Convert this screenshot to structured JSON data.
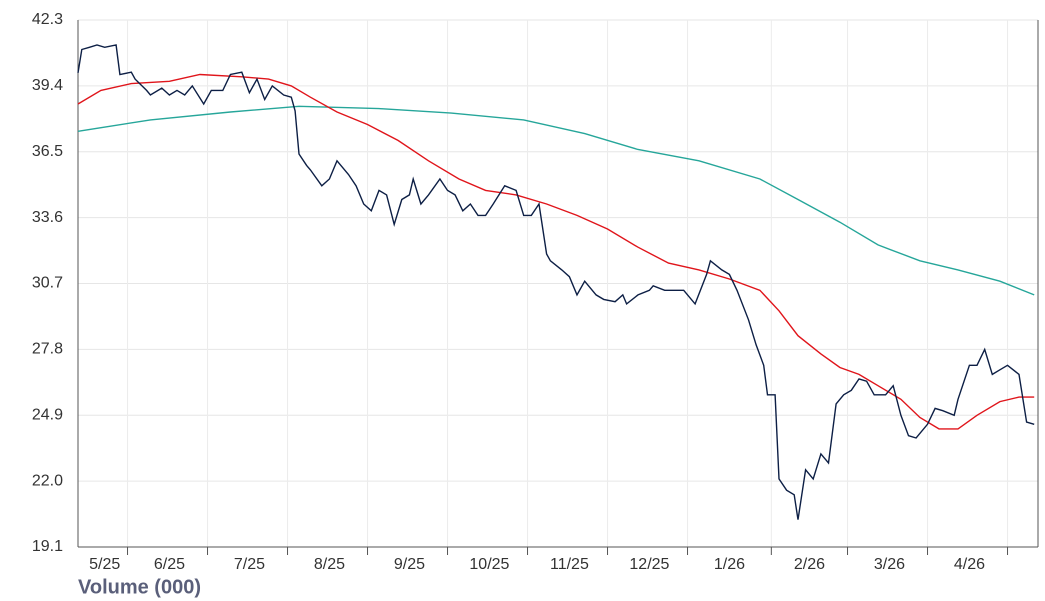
{
  "chart_data": {
    "type": "line",
    "annotation": "Volume (000)",
    "xlim": [
      0,
      252
    ],
    "xticks": [
      {
        "value": 7,
        "label": "5/25"
      },
      {
        "value": 24,
        "label": "6/25"
      },
      {
        "value": 45,
        "label": "7/25"
      },
      {
        "value": 66,
        "label": "8/25"
      },
      {
        "value": 87,
        "label": "9/25"
      },
      {
        "value": 108,
        "label": "10/25"
      },
      {
        "value": 129,
        "label": "11/25"
      },
      {
        "value": 150,
        "label": "12/25"
      },
      {
        "value": 171,
        "label": "1/26"
      },
      {
        "value": 192,
        "label": "2/26"
      },
      {
        "value": 213,
        "label": "3/26"
      },
      {
        "value": 234,
        "label": "4/26"
      }
    ],
    "xgrid": [
      13,
      34,
      55,
      76,
      97,
      118,
      139,
      160,
      182,
      202,
      223,
      244
    ],
    "ylim": [
      19.1,
      42.3
    ],
    "yticks": [
      19.1,
      {
        "value": 22,
        "label": "22.0"
      },
      24.9,
      27.8,
      30.7,
      33.6,
      36.5,
      39.4,
      42.3
    ],
    "grid": true,
    "series": [
      {
        "color": "#0d1f45",
        "x": [
          0,
          1,
          3,
          5,
          7,
          10,
          11,
          14,
          15,
          18,
          19,
          22,
          24,
          26,
          28,
          30,
          33,
          35,
          38,
          40,
          43,
          45,
          47,
          49,
          51,
          54,
          56,
          57,
          58,
          60,
          61,
          64,
          66,
          68,
          71,
          73,
          75,
          77,
          79,
          81,
          83,
          85,
          87,
          88,
          90,
          92,
          95,
          97,
          99,
          101,
          103,
          105,
          107,
          109,
          112,
          115,
          117,
          119,
          121,
          123,
          124,
          127,
          129,
          131,
          133,
          136,
          138,
          141,
          143,
          144,
          147,
          150,
          151,
          154,
          157,
          159,
          162,
          165,
          166,
          169,
          171,
          173,
          176,
          178,
          180,
          181,
          183,
          184,
          186,
          188,
          189,
          191,
          193,
          195,
          197,
          199,
          201,
          203,
          205,
          207,
          209,
          212,
          214,
          216,
          218,
          220,
          223,
          225,
          227,
          230,
          231,
          234,
          236,
          238,
          240,
          242,
          244,
          247,
          249,
          251
        ],
        "values": [
          39.97,
          41.0,
          41.1,
          41.2,
          41.1,
          41.2,
          39.9,
          40.0,
          39.7,
          39.2,
          39.0,
          39.3,
          39.0,
          39.2,
          39.0,
          39.4,
          38.6,
          39.2,
          39.2,
          39.9,
          40.0,
          39.1,
          39.7,
          38.8,
          39.4,
          39.0,
          38.9,
          38.3,
          36.4,
          35.9,
          35.7,
          35.0,
          35.3,
          36.1,
          35.5,
          35.0,
          34.2,
          33.9,
          34.8,
          34.6,
          33.3,
          34.4,
          34.6,
          35.3,
          34.2,
          34.6,
          35.3,
          34.8,
          34.6,
          33.9,
          34.2,
          33.7,
          33.7,
          34.2,
          35.0,
          34.8,
          33.7,
          33.7,
          34.2,
          32.0,
          31.7,
          31.3,
          31.0,
          30.2,
          30.8,
          30.2,
          30.0,
          29.9,
          30.2,
          29.8,
          30.2,
          30.4,
          30.6,
          30.4,
          30.4,
          30.4,
          29.8,
          31.1,
          31.7,
          31.3,
          31.1,
          30.4,
          29.1,
          28.0,
          27.1,
          25.8,
          25.8,
          22.1,
          21.6,
          21.4,
          20.3,
          22.5,
          22.1,
          23.2,
          22.8,
          25.4,
          25.8,
          26.0,
          26.5,
          26.4,
          25.8,
          25.8,
          26.2,
          24.9,
          24.0,
          23.9,
          24.5,
          25.2,
          25.1,
          24.9,
          25.6,
          27.1,
          27.1,
          27.8,
          26.7,
          26.9,
          27.1,
          26.7,
          24.6,
          24.5
        ]
      },
      {
        "color": "#e0151b",
        "x": [
          0,
          6,
          14,
          24,
          32,
          43,
          50,
          56,
          61,
          68,
          76,
          84,
          92,
          100,
          107,
          115,
          123,
          131,
          139,
          147,
          155,
          163,
          171,
          179,
          184,
          189,
          195,
          200,
          205,
          210,
          216,
          221,
          226,
          231,
          236,
          242,
          247,
          251
        ],
        "values": [
          38.6,
          39.2,
          39.5,
          39.6,
          39.9,
          39.8,
          39.7,
          39.4,
          38.9,
          38.25,
          37.7,
          37.0,
          36.1,
          35.3,
          34.8,
          34.6,
          34.2,
          33.7,
          33.1,
          32.3,
          31.6,
          31.3,
          30.9,
          30.4,
          29.5,
          28.4,
          27.6,
          27.0,
          26.7,
          26.2,
          25.6,
          24.8,
          24.3,
          24.3,
          24.9,
          25.5,
          25.7,
          25.7
        ]
      },
      {
        "color": "#26a69a",
        "x": [
          0,
          19,
          40,
          58,
          79,
          98,
          117,
          133,
          147,
          163,
          179,
          189,
          200,
          210,
          221,
          231,
          242,
          251
        ],
        "values": [
          37.4,
          37.9,
          38.25,
          38.5,
          38.4,
          38.2,
          37.9,
          37.3,
          36.6,
          36.1,
          35.3,
          34.4,
          33.4,
          32.4,
          31.7,
          31.3,
          30.8,
          30.2
        ]
      }
    ]
  }
}
